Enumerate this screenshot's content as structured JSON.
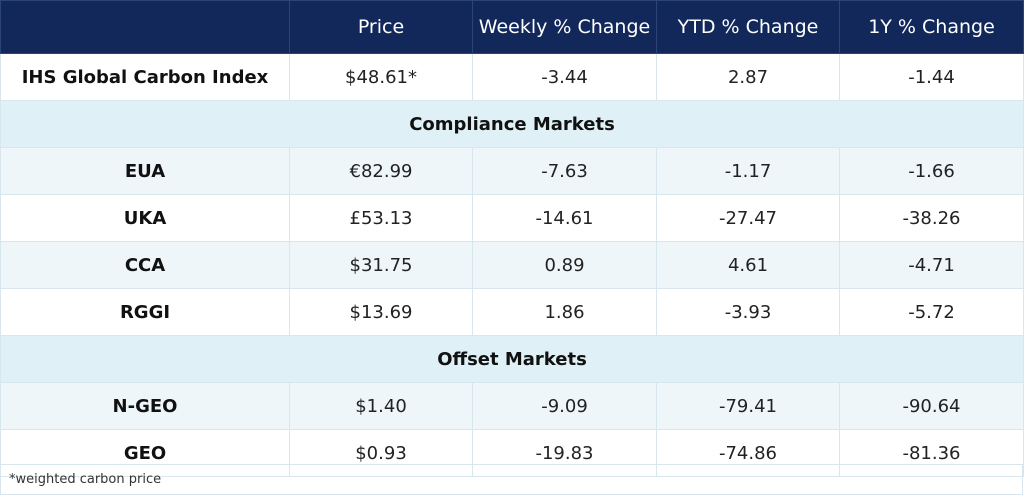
{
  "chart_data": {
    "type": "table",
    "columns": [
      "",
      "Price",
      "Weekly % Change",
      "YTD % Change",
      "1Y % Change"
    ],
    "rows": [
      {
        "kind": "data",
        "name": "IHS Global Carbon Index",
        "price": "$48.61*",
        "weekly": "-3.44",
        "ytd": "2.87",
        "one_year": "-1.44"
      },
      {
        "kind": "section",
        "name": "Compliance Markets"
      },
      {
        "kind": "data",
        "name": "EUA",
        "price": "€82.99",
        "weekly": "-7.63",
        "ytd": "-1.17",
        "one_year": "-1.66"
      },
      {
        "kind": "data",
        "name": "UKA",
        "price": "£53.13",
        "weekly": "-14.61",
        "ytd": "-27.47",
        "one_year": "-38.26"
      },
      {
        "kind": "data",
        "name": "CCA",
        "price": "$31.75",
        "weekly": "0.89",
        "ytd": "4.61",
        "one_year": "-4.71"
      },
      {
        "kind": "data",
        "name": "RGGI",
        "price": "$13.69",
        "weekly": "1.86",
        "ytd": "-3.93",
        "one_year": "-5.72"
      },
      {
        "kind": "section",
        "name": "Offset Markets"
      },
      {
        "kind": "data",
        "name": "N-GEO",
        "price": "$1.40",
        "weekly": "-9.09",
        "ytd": "-79.41",
        "one_year": "-90.64"
      },
      {
        "kind": "data",
        "name": "GEO",
        "price": "$0.93",
        "weekly": "-19.83",
        "ytd": "-74.86",
        "one_year": "-81.36"
      }
    ],
    "footnote": "*weighted carbon price"
  },
  "colors": {
    "header_bg": "#12285a",
    "section_bg": "#dff1f7",
    "row_shade": "#eef6f9",
    "border": "#d8e6ee"
  }
}
